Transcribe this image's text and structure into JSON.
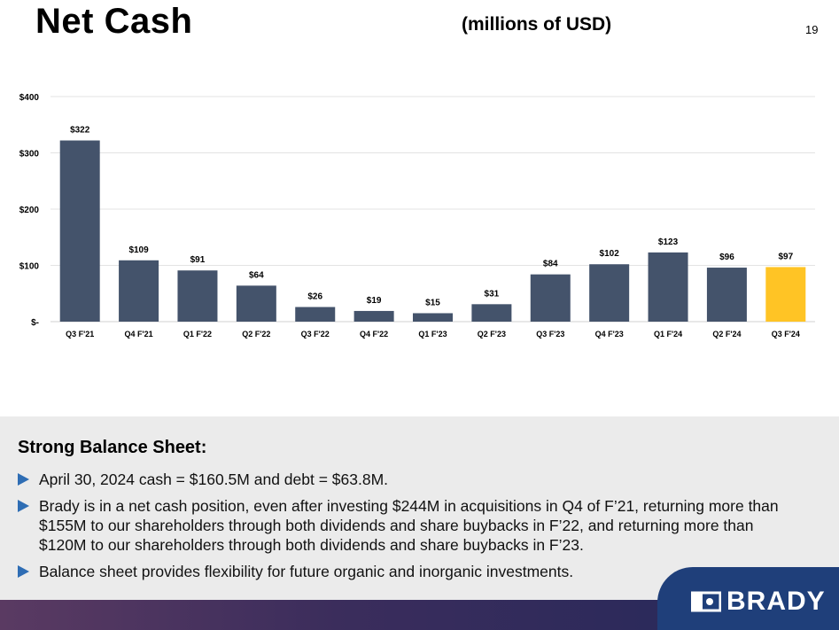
{
  "header": {
    "title": "Net Cash",
    "subtitle": "(millions of USD)",
    "page_number": "19"
  },
  "colors": {
    "bar": "#44536b",
    "bar_highlight": "#ffc425",
    "arrow": "#2e6db4"
  },
  "chart_data": {
    "type": "bar",
    "categories": [
      "Q3 F'21",
      "Q4 F'21",
      "Q1 F'22",
      "Q2 F'22",
      "Q3 F'22",
      "Q4 F'22",
      "Q1 F'23",
      "Q2 F'23",
      "Q3 F'23",
      "Q4 F'23",
      "Q1 F'24",
      "Q2 F'24",
      "Q3 F'24"
    ],
    "values": [
      322,
      109,
      91,
      64,
      26,
      19,
      15,
      31,
      84,
      102,
      123,
      96,
      97
    ],
    "data_labels": [
      "$322",
      "$109",
      "$91",
      "$64",
      "$26",
      "$19",
      "$15",
      "$31",
      "$84",
      "$102",
      "$123",
      "$96",
      "$97"
    ],
    "highlight_category": "Q3 F'24",
    "y_ticks": [
      0,
      100,
      200,
      300,
      400
    ],
    "y_tick_labels": [
      "$-",
      "$100",
      "$200",
      "$300",
      "$400"
    ],
    "ylim": [
      0,
      400
    ],
    "grid": true
  },
  "panel": {
    "heading": "Strong Balance Sheet:",
    "bullets": [
      "April 30, 2024 cash = $160.5M and debt = $63.8M.",
      "Brady is in a net cash position, even after investing $244M in acquisitions in Q4 of F’21, returning more than $155M to our shareholders through both dividends and share buybacks in F’22, and returning more than $120M to our shareholders through both dividends and share buybacks in F’23.",
      "Balance sheet provides flexibility for future organic and inorganic investments."
    ]
  },
  "logo": {
    "text": "BRADY",
    "icon": "brady-logo-icon"
  }
}
